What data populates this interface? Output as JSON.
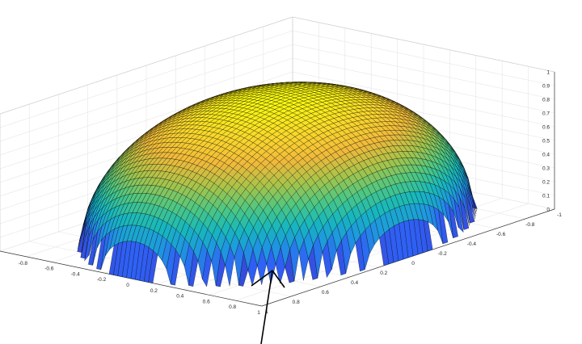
{
  "chart_data": {
    "type": "surface",
    "title": "",
    "xlabel": "",
    "ylabel": "",
    "zlabel": "",
    "surface": "z = sqrt(1 - x^2 - y^2)",
    "xlim": [
      -1,
      1
    ],
    "ylim": [
      -1,
      1
    ],
    "zlim": [
      0,
      1
    ],
    "x_ticks": [
      "-1",
      "-0.8",
      "-0.6",
      "-0.4",
      "-0.2",
      "0",
      "0.2",
      "0.4",
      "0.6",
      "0.8",
      "1"
    ],
    "y_ticks": [
      "-1",
      "-0.8",
      "-0.6",
      "-0.4",
      "-0.2",
      "0",
      "0.2",
      "0.4",
      "0.6",
      "0.8",
      "1"
    ],
    "z_ticks": [
      "0",
      "0.1",
      "0.2",
      "0.3",
      "0.4",
      "0.5",
      "0.6",
      "0.7",
      "0.8",
      "0.9",
      "1"
    ],
    "grid": true,
    "colormap": "parula",
    "colormap_stops": [
      "#3e26a8",
      "#2f60f5",
      "#1f97e0",
      "#17b7bd",
      "#4dc782",
      "#a6c44a",
      "#f1b93a",
      "#f9d82a",
      "#f9fb0e"
    ],
    "edge_color": "#000000",
    "annotation": "arrow"
  }
}
